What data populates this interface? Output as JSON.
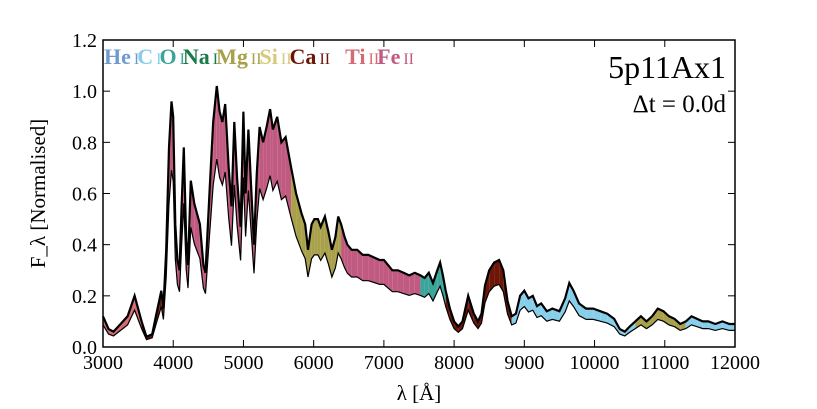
{
  "chart_data": {
    "type": "area",
    "model_label": "5p11Ax1",
    "time_label": "Δt = 0.0d",
    "xlabel": "λ [Å]",
    "ylabel": "F_λ [Normalised]",
    "xlim": [
      3000,
      12000
    ],
    "ylim": [
      0,
      1.2
    ],
    "x_ticks": [
      3000,
      4000,
      5000,
      6000,
      7000,
      8000,
      9000,
      10000,
      11000,
      12000
    ],
    "y_ticks": [
      0.0,
      0.2,
      0.4,
      0.6,
      0.8,
      1.0,
      1.2
    ],
    "y_tick_labels": [
      "0.0",
      "0.2",
      "0.4",
      "0.6",
      "0.8",
      "1.0",
      "1.2"
    ],
    "grid": false,
    "legend": {
      "placement": "top-left",
      "items": [
        {
          "element": "He",
          "stage": "I",
          "color": "#6d9bd1"
        },
        {
          "element": "C",
          "stage": "I",
          "color": "#87ceeb"
        },
        {
          "element": "O",
          "stage": "I",
          "color": "#3ba59a"
        },
        {
          "element": "Na",
          "stage": "I",
          "color": "#1a7a4a"
        },
        {
          "element": "Mg",
          "stage": "II",
          "color": "#a8a04a"
        },
        {
          "element": "Si",
          "stage": "II",
          "color": "#d8c87a"
        },
        {
          "element": "Ca",
          "stage": "II",
          "color": "#6d1608"
        },
        {
          "element": "Ti",
          "stage": "II",
          "color": "#d46a72"
        },
        {
          "element": "Fe",
          "stage": "II",
          "color": "#c05a80"
        }
      ]
    },
    "spectrum": {
      "name": "Full spectrum",
      "points": [
        [
          3000,
          0.12
        ],
        [
          3080,
          0.07
        ],
        [
          3150,
          0.06
        ],
        [
          3250,
          0.09
        ],
        [
          3350,
          0.12
        ],
        [
          3400,
          0.16
        ],
        [
          3450,
          0.2
        ],
        [
          3500,
          0.15
        ],
        [
          3550,
          0.1
        ],
        [
          3620,
          0.04
        ],
        [
          3700,
          0.05
        ],
        [
          3760,
          0.13
        ],
        [
          3800,
          0.18
        ],
        [
          3830,
          0.22
        ],
        [
          3860,
          0.15
        ],
        [
          3900,
          0.38
        ],
        [
          3940,
          0.78
        ],
        [
          3975,
          0.96
        ],
        [
          4000,
          0.9
        ],
        [
          4030,
          0.48
        ],
        [
          4060,
          0.34
        ],
        [
          4090,
          0.3
        ],
        [
          4120,
          0.55
        ],
        [
          4150,
          0.78
        ],
        [
          4185,
          0.42
        ],
        [
          4210,
          0.32
        ],
        [
          4250,
          0.65
        ],
        [
          4300,
          0.56
        ],
        [
          4380,
          0.48
        ],
        [
          4430,
          0.32
        ],
        [
          4460,
          0.29
        ],
        [
          4520,
          0.62
        ],
        [
          4570,
          0.88
        ],
        [
          4620,
          1.02
        ],
        [
          4660,
          0.92
        ],
        [
          4700,
          0.88
        ],
        [
          4740,
          0.95
        ],
        [
          4790,
          0.7
        ],
        [
          4830,
          0.55
        ],
        [
          4870,
          0.88
        ],
        [
          4910,
          0.66
        ],
        [
          4960,
          0.47
        ],
        [
          5000,
          0.92
        ],
        [
          5030,
          0.6
        ],
        [
          5070,
          0.85
        ],
        [
          5110,
          0.62
        ],
        [
          5150,
          0.4
        ],
        [
          5190,
          0.68
        ],
        [
          5230,
          0.86
        ],
        [
          5280,
          0.8
        ],
        [
          5330,
          0.86
        ],
        [
          5380,
          0.93
        ],
        [
          5420,
          0.85
        ],
        [
          5480,
          0.9
        ],
        [
          5540,
          0.8
        ],
        [
          5600,
          0.82
        ],
        [
          5680,
          0.7
        ],
        [
          5750,
          0.6
        ],
        [
          5830,
          0.52
        ],
        [
          5880,
          0.48
        ],
        [
          5920,
          0.38
        ],
        [
          5970,
          0.48
        ],
        [
          6010,
          0.5
        ],
        [
          6060,
          0.5
        ],
        [
          6100,
          0.47
        ],
        [
          6160,
          0.51
        ],
        [
          6210,
          0.45
        ],
        [
          6260,
          0.38
        ],
        [
          6310,
          0.43
        ],
        [
          6350,
          0.51
        ],
        [
          6390,
          0.48
        ],
        [
          6440,
          0.43
        ],
        [
          6480,
          0.4
        ],
        [
          6540,
          0.38
        ],
        [
          6620,
          0.38
        ],
        [
          6700,
          0.36
        ],
        [
          6780,
          0.36
        ],
        [
          6860,
          0.35
        ],
        [
          6940,
          0.34
        ],
        [
          7000,
          0.34
        ],
        [
          7060,
          0.32
        ],
        [
          7120,
          0.3
        ],
        [
          7200,
          0.3
        ],
        [
          7280,
          0.29
        ],
        [
          7360,
          0.28
        ],
        [
          7440,
          0.29
        ],
        [
          7520,
          0.28
        ],
        [
          7580,
          0.27
        ],
        [
          7640,
          0.29
        ],
        [
          7700,
          0.25
        ],
        [
          7760,
          0.3
        ],
        [
          7800,
          0.33
        ],
        [
          7840,
          0.28
        ],
        [
          7880,
          0.22
        ],
        [
          7940,
          0.15
        ],
        [
          8000,
          0.1
        ],
        [
          8060,
          0.08
        ],
        [
          8120,
          0.1
        ],
        [
          8200,
          0.2
        ],
        [
          8280,
          0.13
        ],
        [
          8340,
          0.1
        ],
        [
          8390,
          0.13
        ],
        [
          8440,
          0.24
        ],
        [
          8500,
          0.3
        ],
        [
          8570,
          0.33
        ],
        [
          8640,
          0.34
        ],
        [
          8700,
          0.3
        ],
        [
          8760,
          0.18
        ],
        [
          8820,
          0.12
        ],
        [
          8880,
          0.13
        ],
        [
          8940,
          0.2
        ],
        [
          9000,
          0.22
        ],
        [
          9060,
          0.19
        ],
        [
          9120,
          0.2
        ],
        [
          9180,
          0.16
        ],
        [
          9240,
          0.17
        ],
        [
          9320,
          0.14
        ],
        [
          9400,
          0.15
        ],
        [
          9500,
          0.14
        ],
        [
          9580,
          0.19
        ],
        [
          9640,
          0.25
        ],
        [
          9700,
          0.22
        ],
        [
          9780,
          0.17
        ],
        [
          9880,
          0.15
        ],
        [
          9980,
          0.15
        ],
        [
          10080,
          0.14
        ],
        [
          10180,
          0.13
        ],
        [
          10280,
          0.11
        ],
        [
          10360,
          0.07
        ],
        [
          10430,
          0.06
        ],
        [
          10500,
          0.08
        ],
        [
          10580,
          0.1
        ],
        [
          10660,
          0.12
        ],
        [
          10740,
          0.1
        ],
        [
          10820,
          0.12
        ],
        [
          10900,
          0.15
        ],
        [
          10980,
          0.14
        ],
        [
          11060,
          0.12
        ],
        [
          11140,
          0.11
        ],
        [
          11220,
          0.09
        ],
        [
          11300,
          0.1
        ],
        [
          11380,
          0.12
        ],
        [
          11460,
          0.11
        ],
        [
          11540,
          0.1
        ],
        [
          11620,
          0.1
        ],
        [
          11720,
          0.09
        ],
        [
          11820,
          0.1
        ],
        [
          11920,
          0.09
        ],
        [
          12000,
          0.09
        ]
      ]
    }
  }
}
